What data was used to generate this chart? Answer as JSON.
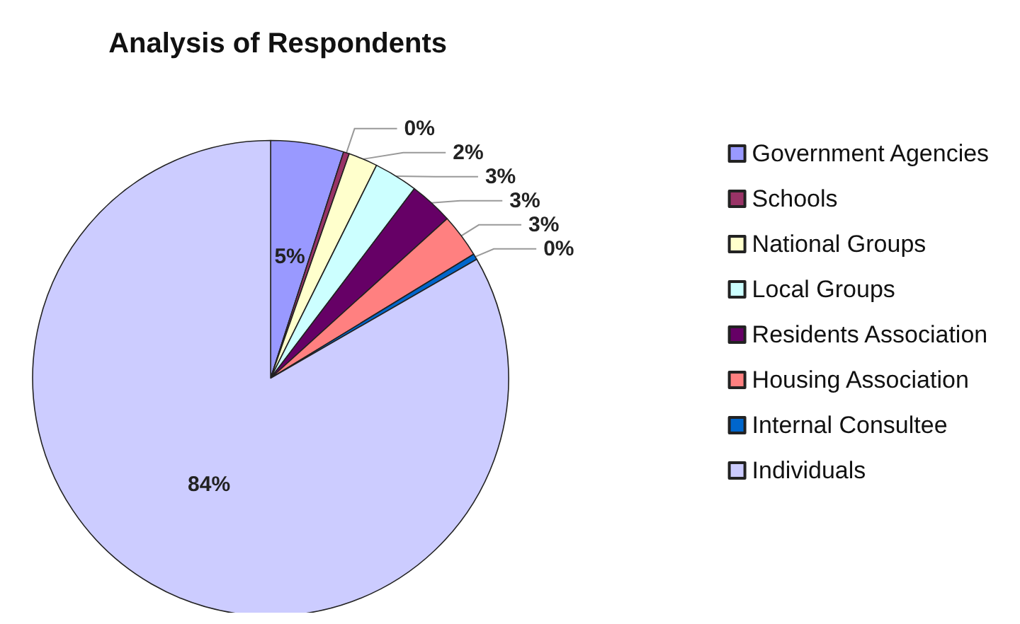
{
  "chart_data": {
    "type": "pie",
    "title": "Analysis of Respondents",
    "categories": [
      "Government Agencies",
      "Schools",
      "National Groups",
      "Local Groups",
      "Residents Association",
      "Housing Association",
      "Internal Consultee",
      "Individuals"
    ],
    "values": [
      5,
      0.4,
      2,
      3,
      3,
      3,
      0.4,
      84
    ],
    "value_labels": [
      "5%",
      "0%",
      "2%",
      "3%",
      "3%",
      "3%",
      "0%",
      "84%"
    ],
    "colors": [
      "#9999ff",
      "#993366",
      "#ffffcc",
      "#ccffff",
      "#660066",
      "#ff8080",
      "#0066cc",
      "#ccccff"
    ],
    "legend": "right"
  }
}
